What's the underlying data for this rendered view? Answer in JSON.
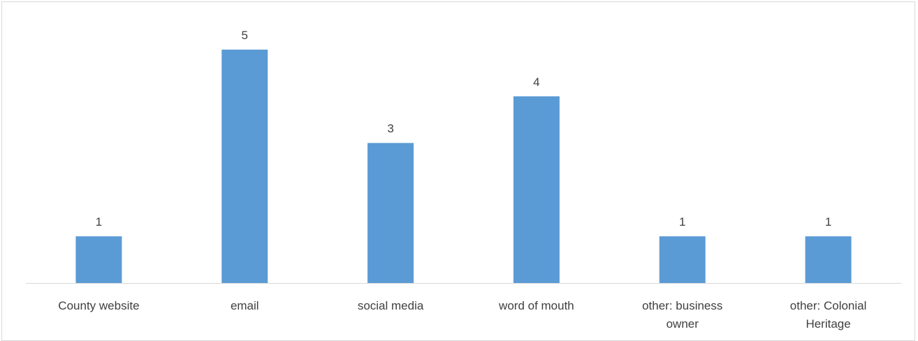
{
  "chart_data": {
    "type": "bar",
    "categories": [
      [
        "County website"
      ],
      [
        "email"
      ],
      [
        "social media"
      ],
      [
        "word of mouth"
      ],
      [
        "other: business",
        "owner"
      ],
      [
        "other: Colonial",
        "Heritage"
      ]
    ],
    "values": [
      1,
      5,
      3,
      4,
      1,
      1
    ],
    "title": "",
    "xlabel": "",
    "ylabel": "",
    "ylim": [
      0,
      5
    ],
    "grid": false,
    "legend": "none",
    "data_labels": true,
    "bar_color": "#5b9bd5",
    "axis_color": "#d9d9d9",
    "label_color": "#404040"
  }
}
